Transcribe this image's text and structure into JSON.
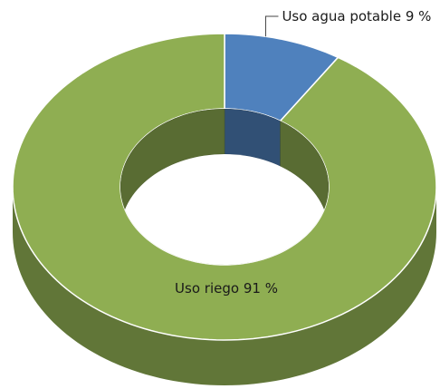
{
  "chart_data": {
    "type": "donut3d",
    "categories": [
      "Uso agua potable",
      "Uso riego"
    ],
    "values": [
      9,
      91
    ],
    "value_labels": [
      "9 %",
      "91 %"
    ],
    "colors": [
      "#4f81bd",
      "#8fae52"
    ]
  }
}
